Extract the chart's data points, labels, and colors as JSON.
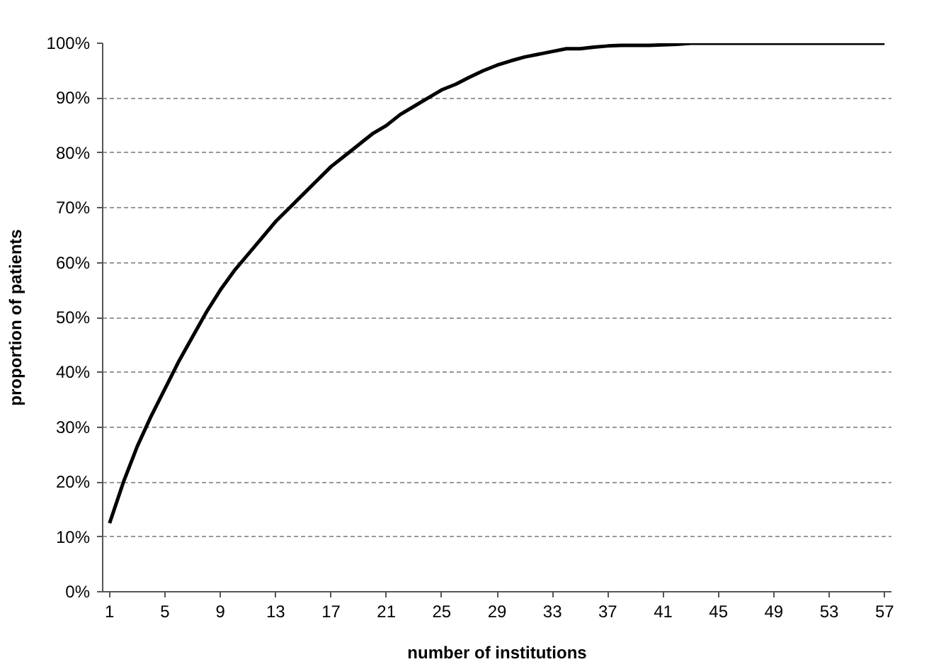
{
  "chart_data": {
    "type": "line",
    "xlabel": "number of institutions",
    "ylabel": "proportion of patients",
    "x": [
      1,
      2,
      3,
      4,
      5,
      6,
      7,
      8,
      9,
      10,
      11,
      12,
      13,
      14,
      15,
      16,
      17,
      18,
      19,
      20,
      21,
      22,
      23,
      24,
      25,
      26,
      27,
      28,
      29,
      30,
      31,
      32,
      33,
      34,
      35,
      36,
      37,
      38,
      39,
      40,
      41,
      42,
      43,
      44,
      45,
      46,
      47,
      48,
      49,
      50,
      51,
      52,
      53,
      54,
      55,
      56,
      57
    ],
    "series": [
      {
        "color": "#000000",
        "values": [
          12.5,
          20,
          26.5,
          32,
          37,
          42,
          46.5,
          51,
          55,
          58.5,
          61.5,
          64.5,
          67.5,
          70,
          72.5,
          75,
          77.5,
          79.5,
          81.5,
          83.5,
          85,
          87,
          88.5,
          90,
          91.5,
          92.5,
          93.8,
          95,
          96,
          96.8,
          97.5,
          98,
          98.5,
          99,
          99,
          99.3,
          99.5,
          99.6,
          99.6,
          99.6,
          99.7,
          99.8,
          100,
          100,
          100,
          100,
          100,
          100,
          100,
          100,
          100,
          100,
          100,
          100,
          100,
          100,
          100
        ]
      }
    ],
    "xlim": [
      0.5,
      57.5
    ],
    "xticks": [
      1,
      5,
      9,
      13,
      17,
      21,
      25,
      29,
      33,
      37,
      41,
      45,
      49,
      53,
      57
    ],
    "ylim": [
      0,
      100
    ],
    "yticks": [
      {
        "value": 0,
        "label": "0%"
      },
      {
        "value": 10,
        "label": "10%"
      },
      {
        "value": 20,
        "label": "20%"
      },
      {
        "value": 30,
        "label": "30%"
      },
      {
        "value": 40,
        "label": "40%"
      },
      {
        "value": 50,
        "label": "50%"
      },
      {
        "value": 60,
        "label": "60%"
      },
      {
        "value": 70,
        "label": "70%"
      },
      {
        "value": 80,
        "label": "80%"
      },
      {
        "value": 90,
        "label": "90%"
      },
      {
        "value": 100,
        "label": "100%"
      }
    ],
    "grid": "y",
    "marker": "none",
    "line_style": "solid"
  }
}
